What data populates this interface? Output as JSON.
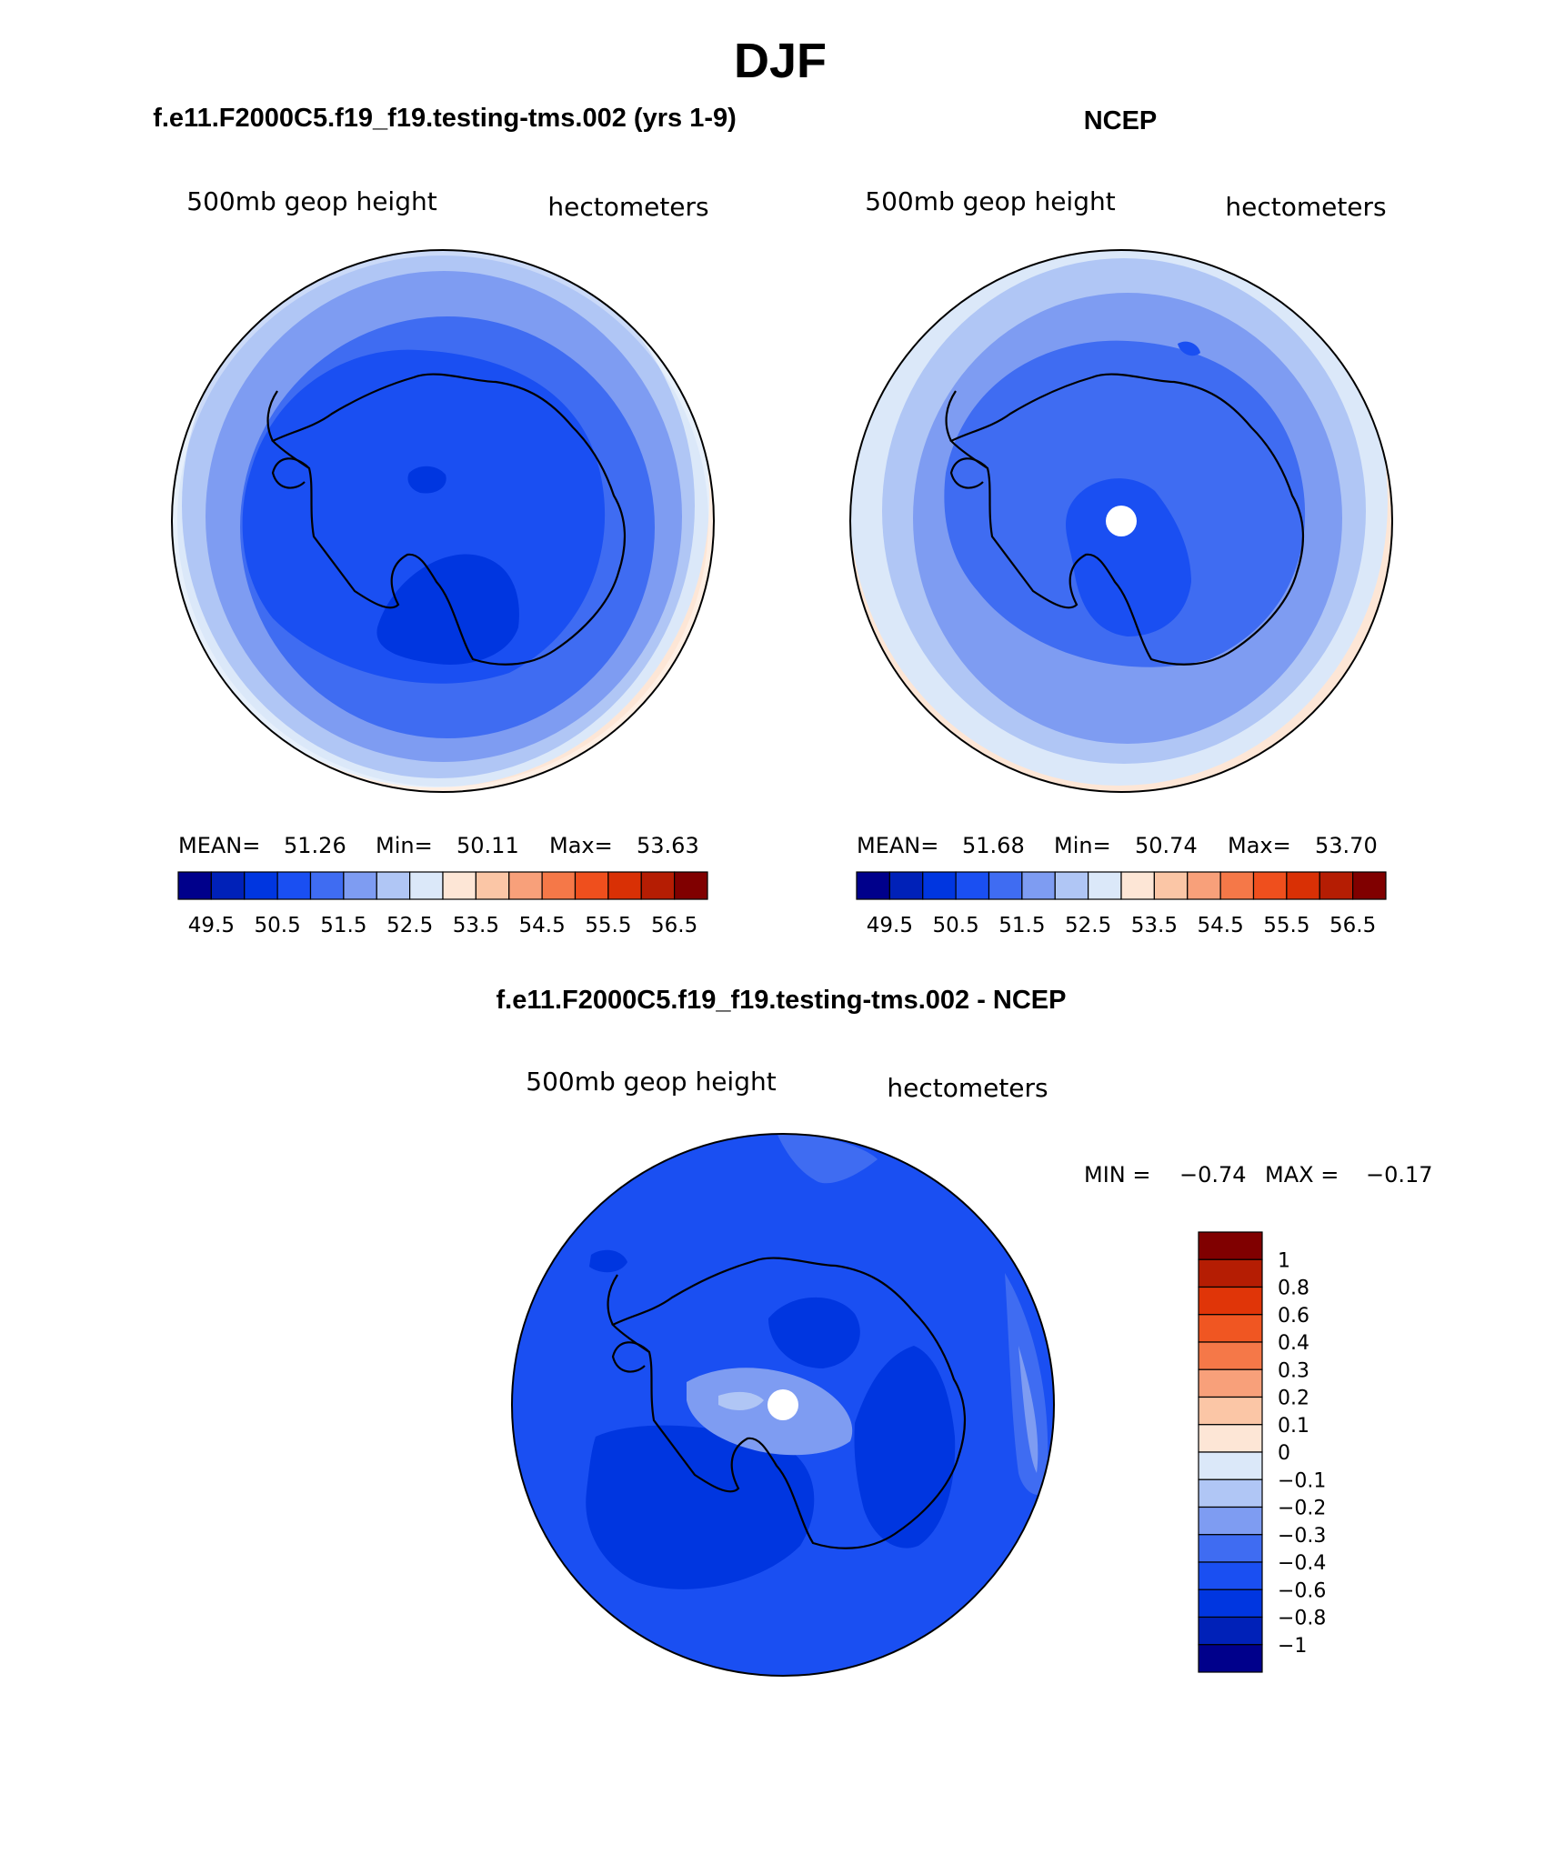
{
  "page": {
    "title": "DJF",
    "caption_left": "f.e11.F2000C5.f19_f19.testing-tms.002 (yrs 1-9)",
    "caption_right": "NCEP",
    "caption_diff": "f.e11.F2000C5.f19_f19.testing-tms.002 - NCEP"
  },
  "panels": [
    {
      "variable": "500mb geop height",
      "units": "hectometers",
      "stats": {
        "mean_label": "MEAN=",
        "mean": "51.26",
        "min_label": "Min=",
        "min": "50.11",
        "max_label": "Max=",
        "max": "53.63"
      },
      "colorbar_labels": [
        "49.5",
        "50.5",
        "51.5",
        "52.5",
        "53.5",
        "54.5",
        "55.5",
        "56.5"
      ]
    },
    {
      "variable": "500mb geop height",
      "units": "hectometers",
      "stats": {
        "mean_label": "MEAN=",
        "mean": "51.68",
        "min_label": "Min=",
        "min": "50.74",
        "max_label": "Max=",
        "max": "53.70"
      },
      "colorbar_labels": [
        "49.5",
        "50.5",
        "51.5",
        "52.5",
        "53.5",
        "54.5",
        "55.5",
        "56.5"
      ]
    },
    {
      "variable": "500mb geop height",
      "units": "hectometers",
      "minmax": {
        "min_label": "MIN =",
        "min": "−0.74",
        "max_label": "MAX =",
        "max": "−0.17"
      },
      "colorbar_labels": [
        "1",
        "0.8",
        "0.6",
        "0.4",
        "0.3",
        "0.2",
        "0.1",
        "0",
        "−0.1",
        "−0.2",
        "−0.3",
        "−0.4",
        "−0.6",
        "−0.8",
        "−1"
      ]
    }
  ],
  "palette": {
    "levels": [
      "#00008b",
      "#0021b8",
      "#0036e0",
      "#1a4ff2",
      "#3f6cf2",
      "#7e9cf2",
      "#b0c6f5",
      "#dbe8f9",
      "#fde6d6",
      "#fbc6a6",
      "#f8a07a",
      "#f57848",
      "#ef4f1d",
      "#d93005",
      "#b51d03",
      "#800000"
    ],
    "diff_levels": [
      "#800000",
      "#b51d03",
      "#e03508",
      "#f05622",
      "#f57848",
      "#f8a07a",
      "#fbc6a6",
      "#fde6d6",
      "#dbe8f9",
      "#b0c6f5",
      "#7e9cf2",
      "#3f6cf2",
      "#1a4ff2",
      "#0036e0",
      "#0021b8",
      "#00008b"
    ]
  }
}
